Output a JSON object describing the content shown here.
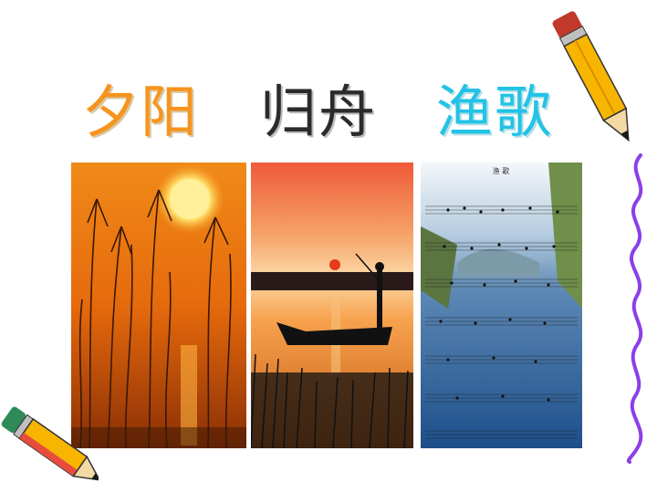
{
  "title": {
    "part1": {
      "chars": [
        "夕",
        "阳"
      ],
      "color": "#F7941D"
    },
    "part2": {
      "chars": [
        "归",
        "舟"
      ],
      "color": "#2b2b2b"
    },
    "part3": {
      "chars": [
        "渔",
        "歌"
      ],
      "color": "#22C3E6"
    }
  },
  "sheet_music": {
    "song_title": "渔 歌"
  },
  "colors": {
    "squiggle": "#8B3FE8",
    "pencil_body": "#F7B500",
    "pencil_tip": "#1a1a1a"
  }
}
